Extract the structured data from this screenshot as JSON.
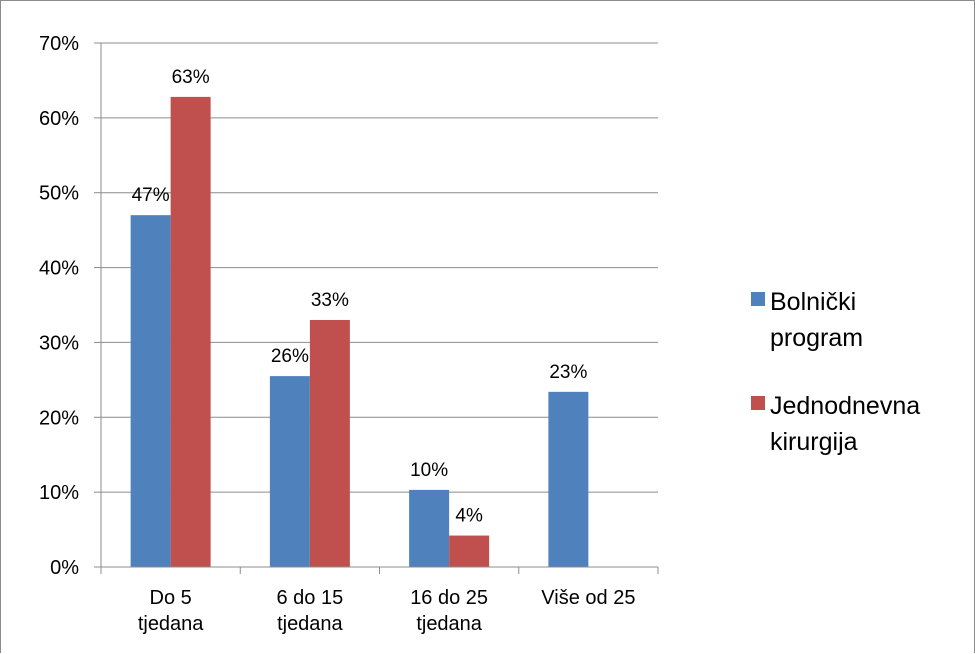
{
  "chart_data": {
    "type": "bar",
    "categories": [
      [
        "Do 5",
        "tjedana"
      ],
      [
        "6 do 15",
        "tjedana"
      ],
      [
        "16 do 25",
        "tjedana"
      ],
      [
        "Više od 25"
      ]
    ],
    "series": [
      {
        "name": [
          "Bolnički",
          "program"
        ],
        "color": "#4f81bd",
        "values": [
          47,
          25.5,
          10.3,
          23.4
        ],
        "labels": [
          "47%",
          "26%",
          "10%",
          "23%"
        ]
      },
      {
        "name": [
          "Jednodnevna",
          "kirurgija"
        ],
        "color": "#c0504d",
        "values": [
          62.8,
          33,
          4.2,
          null
        ],
        "labels": [
          "63%",
          "33%",
          "4%",
          null
        ]
      }
    ],
    "yticks": [
      "0%",
      "10%",
      "20%",
      "30%",
      "40%",
      "50%",
      "60%",
      "70%"
    ],
    "ylim": [
      0,
      70
    ],
    "grid": true,
    "legend_position": "right"
  }
}
